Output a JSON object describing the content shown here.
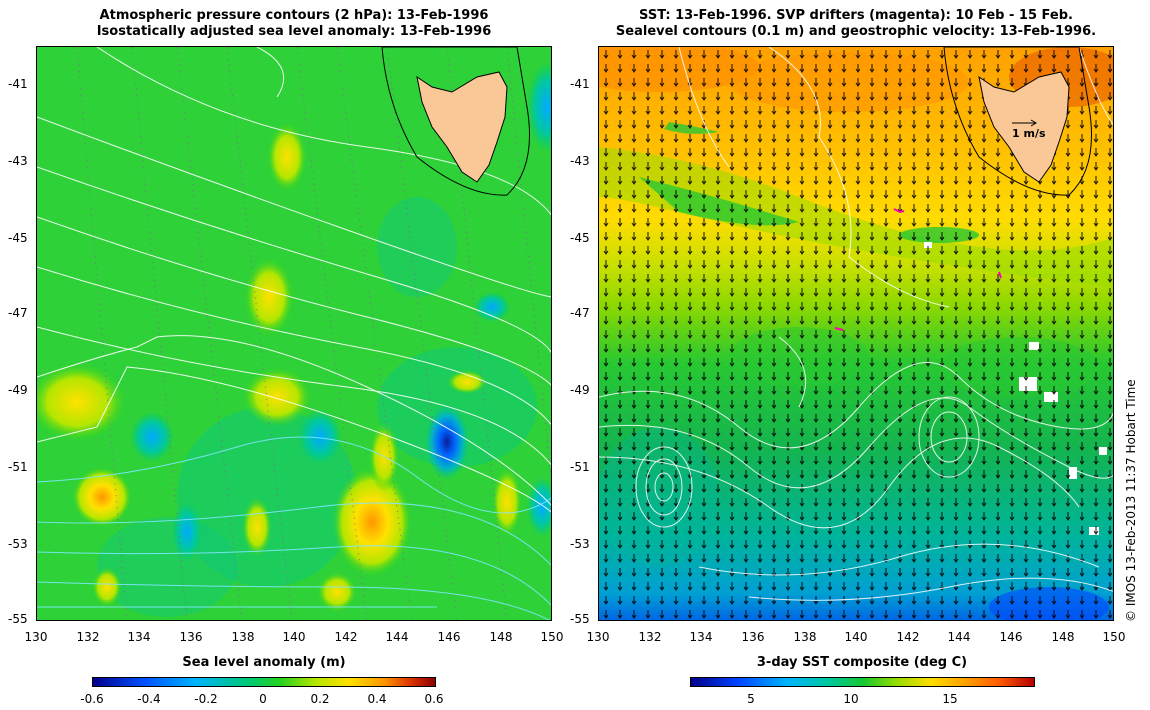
{
  "left_panel": {
    "title_line1": "Atmospheric pressure contours (2 hPa): 13-Feb-1996",
    "title_line2": "Isostatically adjusted sea level anomaly: 13-Feb-1996",
    "colorbar_title": "Sea level anomaly (m)",
    "colorbar_ticks": [
      "-0.6",
      "-0.4",
      "-0.2",
      "0",
      "0.2",
      "0.4",
      "0.6"
    ]
  },
  "right_panel": {
    "title_line1": "SST: 13-Feb-1996. SVP drifters (magenta): 10 Feb - 15 Feb.",
    "title_line2": "Sealevel contours (0.1 m) and geostrophic velocity: 13-Feb-1996.",
    "colorbar_title": "3-day SST composite (deg C)",
    "colorbar_ticks": [
      "5",
      "10",
      "15"
    ],
    "velocity_scale_label": "1 m/s"
  },
  "axes": {
    "lat_ticks": [
      "-41",
      "-43",
      "-45",
      "-47",
      "-49",
      "-51",
      "-53",
      "-55"
    ],
    "lon_ticks": [
      "130",
      "132",
      "134",
      "136",
      "138",
      "140",
      "142",
      "144",
      "146",
      "148",
      "150"
    ]
  },
  "credit": "© IMOS 13-Feb-2013 11:37 Hobart Time",
  "colors": {
    "land": "#f9c896",
    "sla_scale": [
      "#00008b",
      "#0050ff",
      "#00b4ff",
      "#00c878",
      "#28d21e",
      "#b4e600",
      "#ffe100",
      "#ff9600",
      "#dc3200",
      "#8b0000"
    ],
    "sst_scale": [
      "#00008b",
      "#0046ff",
      "#00b4ff",
      "#00c8a0",
      "#14c832",
      "#96dc00",
      "#ffdc00",
      "#ffa000",
      "#ff5a00",
      "#b40000"
    ]
  }
}
